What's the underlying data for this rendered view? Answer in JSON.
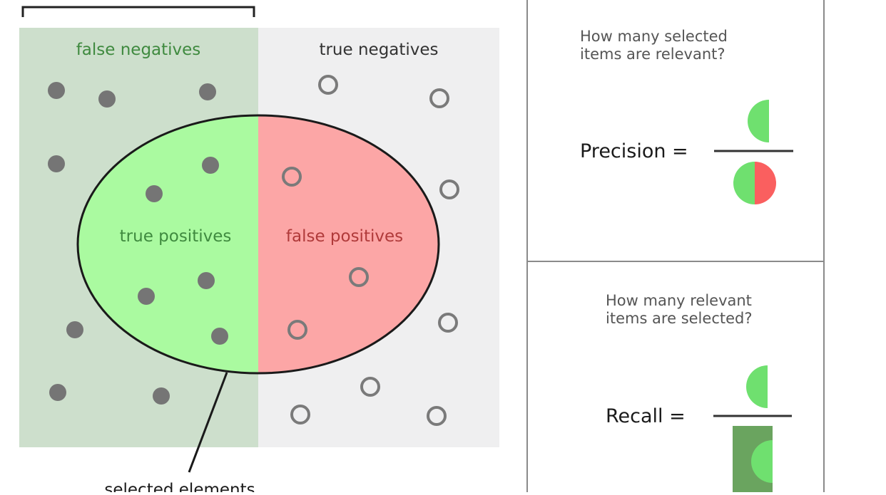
{
  "diagram": {
    "labels": {
      "false_negatives": "false negatives",
      "true_negatives": "true negatives",
      "true_positives": "true positives",
      "false_positives": "false positives",
      "selected_elements": "selected elements"
    },
    "colors": {
      "relevant_region": "#cddfcc",
      "irrelevant_region": "#efeff0",
      "true_positive_fill": "#aafaa0",
      "false_positive_fill": "#fca6a6",
      "relevant_dot": "#757575",
      "irrelevant_ring": "#7a7a7a",
      "label_green": "#3f8a3f",
      "label_gray": "#333333",
      "label_red": "#b03a3a"
    }
  },
  "precision_panel": {
    "question": [
      "How many selected",
      "items are relevant?"
    ],
    "label": "Precision =",
    "colors": {
      "green": "#6fe06f",
      "red": "#fa5f5f"
    }
  },
  "recall_panel": {
    "question": [
      "How many relevant",
      "items are selected?"
    ],
    "label": "Recall =",
    "colors": {
      "green": "#6fe06f",
      "dark_green": "#6aa45f"
    }
  }
}
